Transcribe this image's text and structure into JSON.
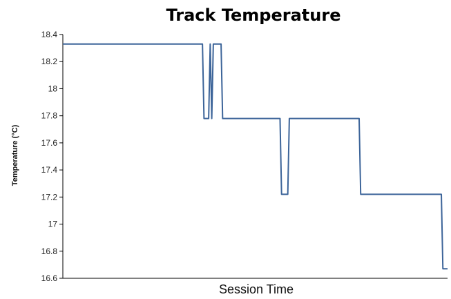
{
  "chart_data": {
    "type": "line",
    "title": "Track Temperature",
    "xlabel": "Session Time",
    "ylabel": "Temperature (°C)",
    "ylim": [
      16.6,
      18.4
    ],
    "yticks": [
      "18.4",
      "18.2",
      "18",
      "17.8",
      "17.6",
      "17.4",
      "17.2",
      "17",
      "16.8",
      "16.6"
    ],
    "grid": false,
    "series": [
      {
        "color": "#3c6499",
        "values": [
          18.33,
          18.33,
          18.33,
          18.33,
          18.33,
          18.33,
          18.33,
          18.33,
          18.33,
          18.33,
          18.33,
          18.33,
          18.33,
          18.33,
          18.33,
          18.33,
          18.33,
          18.33,
          18.33,
          18.33,
          18.33,
          18.33,
          18.33,
          18.33,
          18.33,
          18.33,
          18.33,
          18.33,
          18.33,
          18.33,
          18.33,
          18.33,
          18.33,
          18.33,
          18.33,
          18.33,
          18.33,
          18.33,
          18.33,
          18.33,
          18.33,
          18.33,
          18.33,
          18.33,
          18.33,
          18.33,
          18.33,
          18.33,
          18.33,
          18.33,
          18.33,
          18.33,
          18.33,
          18.33,
          18.33,
          18.33,
          18.33,
          18.33,
          18.33,
          18.33,
          18.33,
          18.33,
          18.33,
          18.33,
          18.33,
          18.33,
          18.33,
          18.33,
          18.33,
          18.33,
          18.33,
          18.33,
          18.33,
          18.33,
          18.33,
          18.33,
          18.33,
          18.33,
          18.33,
          18.33,
          18.33,
          18.33,
          18.33,
          18.33,
          18.33,
          18.33,
          18.33,
          18.33,
          18.33,
          18.33,
          18.33,
          17.78,
          17.78,
          17.78,
          17.78,
          18.33,
          17.78,
          18.33,
          18.33,
          18.33,
          18.33,
          18.33,
          18.33,
          17.78,
          17.78,
          17.78,
          17.78,
          17.78,
          17.78,
          17.78,
          17.78,
          17.78,
          17.78,
          17.78,
          17.78,
          17.78,
          17.78,
          17.78,
          17.78,
          17.78,
          17.78,
          17.78,
          17.78,
          17.78,
          17.78,
          17.78,
          17.78,
          17.78,
          17.78,
          17.78,
          17.78,
          17.78,
          17.78,
          17.78,
          17.78,
          17.78,
          17.78,
          17.78,
          17.78,
          17.78,
          17.78,
          17.22,
          17.22,
          17.22,
          17.22,
          17.22,
          17.78,
          17.78,
          17.78,
          17.78,
          17.78,
          17.78,
          17.78,
          17.78,
          17.78,
          17.78,
          17.78,
          17.78,
          17.78,
          17.78,
          17.78,
          17.78,
          17.78,
          17.78,
          17.78,
          17.78,
          17.78,
          17.78,
          17.78,
          17.78,
          17.78,
          17.78,
          17.78,
          17.78,
          17.78,
          17.78,
          17.78,
          17.78,
          17.78,
          17.78,
          17.78,
          17.78,
          17.78,
          17.78,
          17.78,
          17.78,
          17.78,
          17.78,
          17.78,
          17.78,
          17.78,
          17.78,
          17.22,
          17.22,
          17.22,
          17.22,
          17.22,
          17.22,
          17.22,
          17.22,
          17.22,
          17.22,
          17.22,
          17.22,
          17.22,
          17.22,
          17.22,
          17.22,
          17.22,
          17.22,
          17.22,
          17.22,
          17.22,
          17.22,
          17.22,
          17.22,
          17.22,
          17.22,
          17.22,
          17.22,
          17.22,
          17.22,
          17.22,
          17.22,
          17.22,
          17.22,
          17.22,
          17.22,
          17.22,
          17.22,
          17.22,
          17.22,
          17.22,
          17.22,
          17.22,
          17.22,
          17.22,
          17.22,
          17.22,
          17.22,
          17.22,
          17.22,
          17.22,
          17.22,
          17.22,
          16.67,
          16.67,
          16.67,
          16.67
        ]
      }
    ]
  }
}
